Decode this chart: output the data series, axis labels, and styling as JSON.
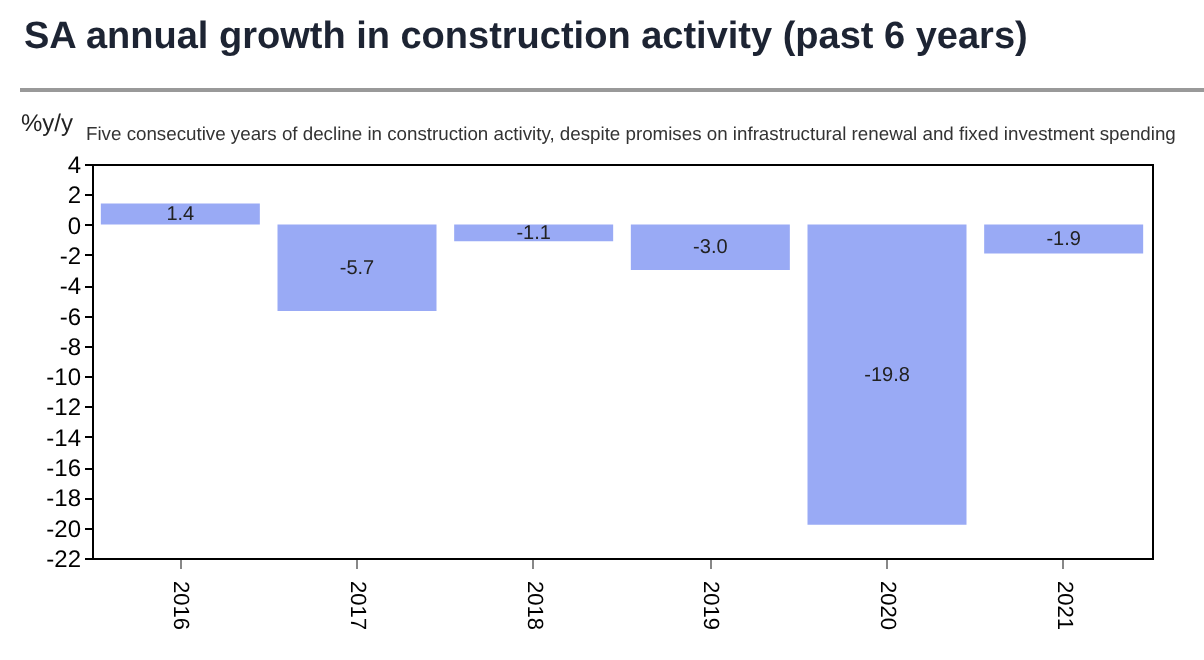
{
  "chart_data": {
    "type": "bar",
    "title": "SA annual growth in construction activity (past 6 years)",
    "subtitle": "Five consecutive years of decline in construction activity, despite promises on infrastructural renewal and fixed investment spending",
    "ylabel": "%y/y",
    "categories": [
      "2016",
      "2017",
      "2018",
      "2019",
      "2020",
      "2021"
    ],
    "values": [
      1.4,
      -5.7,
      -1.1,
      -3.0,
      -19.8,
      -1.9
    ],
    "value_labels": [
      "1.4",
      "-5.7",
      "-1.1",
      "-3.0",
      "-19.8",
      "-1.9"
    ],
    "color": "#99aaf5",
    "ylim": [
      -22,
      4
    ],
    "yticks": [
      -22,
      -20,
      -18,
      -16,
      -14,
      -12,
      -10,
      -8,
      -6,
      -4,
      -2,
      0,
      2,
      4
    ],
    "grid": false
  }
}
